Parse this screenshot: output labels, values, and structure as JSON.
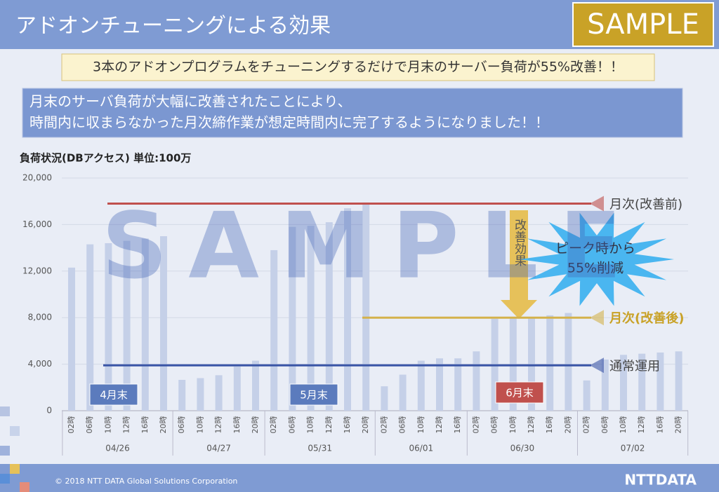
{
  "header": {
    "title": "アドオンチューニングによる効果",
    "badge": "SAMPLE"
  },
  "banner": "3本のアドオンプログラムをチューニングするだけで月末のサーバー負荷が55%改善！！",
  "summary": [
    "月末のサーバ負荷が大幅に改善されたことにより、",
    "時間内に収まらなかった月次締作業が想定時間内に完了するようになりました！！"
  ],
  "watermark": "SAMPLE",
  "footer": {
    "copyright": "© 2018 NTT DATA Global Solutions Corporation",
    "logo": "NTTDATA"
  },
  "chart_data": {
    "type": "bar",
    "title": "負荷状況(DBアクセス)  単位:100万",
    "color": "#c5d0e8",
    "ylim": [
      0,
      20000
    ],
    "yticks": [
      0,
      {
        "value": 4000,
        "label": "4,000"
      },
      {
        "value": 8000,
        "label": "8,000"
      },
      {
        "value": 12000,
        "label": "12,000"
      },
      {
        "value": 16000,
        "label": "16,000"
      },
      {
        "value": 20000,
        "label": "20,000"
      }
    ],
    "grid": true,
    "groups": [
      {
        "name": "04/26",
        "categories": [
          "02時",
          "06時",
          "10時",
          "12時",
          "16時",
          "20時"
        ],
        "values": [
          12300,
          14300,
          14400,
          14600,
          14800,
          15000
        ]
      },
      {
        "name": "04/27",
        "categories": [
          "06時",
          "10時",
          "12時",
          "16時",
          "20時"
        ],
        "values": [
          2650,
          2800,
          3050,
          3800,
          4300
        ]
      },
      {
        "name": "05/31",
        "categories": [
          "02時",
          "06時",
          "10時",
          "12時",
          "16時",
          "20時"
        ],
        "values": [
          13800,
          15800,
          15900,
          16200,
          17400,
          17900
        ]
      },
      {
        "name": "06/01",
        "categories": [
          "02時",
          "06時",
          "10時",
          "12時",
          "16時"
        ],
        "values": [
          2100,
          3100,
          4300,
          4500,
          4500
        ]
      },
      {
        "name": "06/30",
        "categories": [
          "02時",
          "06時",
          "10時",
          "12時",
          "16時",
          "20時"
        ],
        "values": [
          5100,
          7900,
          8000,
          8000,
          8200,
          8400
        ]
      },
      {
        "name": "07/02",
        "categories": [
          "02時",
          "06時",
          "10時",
          "12時",
          "16時",
          "20時"
        ],
        "values": [
          2600,
          4400,
          4800,
          4900,
          5000,
          5100
        ]
      }
    ],
    "reference_lines": [
      {
        "label": "月次(改善前)",
        "value": 17800,
        "color": "#c0504d"
      },
      {
        "label": "月次(改善後)",
        "value": 8000,
        "color": "#d4b24c"
      },
      {
        "label": "通常運用",
        "value": 3900,
        "color": "#3a55a6"
      }
    ],
    "callouts": [
      {
        "label": "4月末",
        "color": "#5b7bbd"
      },
      {
        "label": "5月末",
        "color": "#5b7bbd"
      },
      {
        "label": "6月末",
        "color": "#c0504d"
      }
    ],
    "arrow_label": "改善効果",
    "burst_label": [
      "ピーク時から",
      "55%削減"
    ]
  }
}
